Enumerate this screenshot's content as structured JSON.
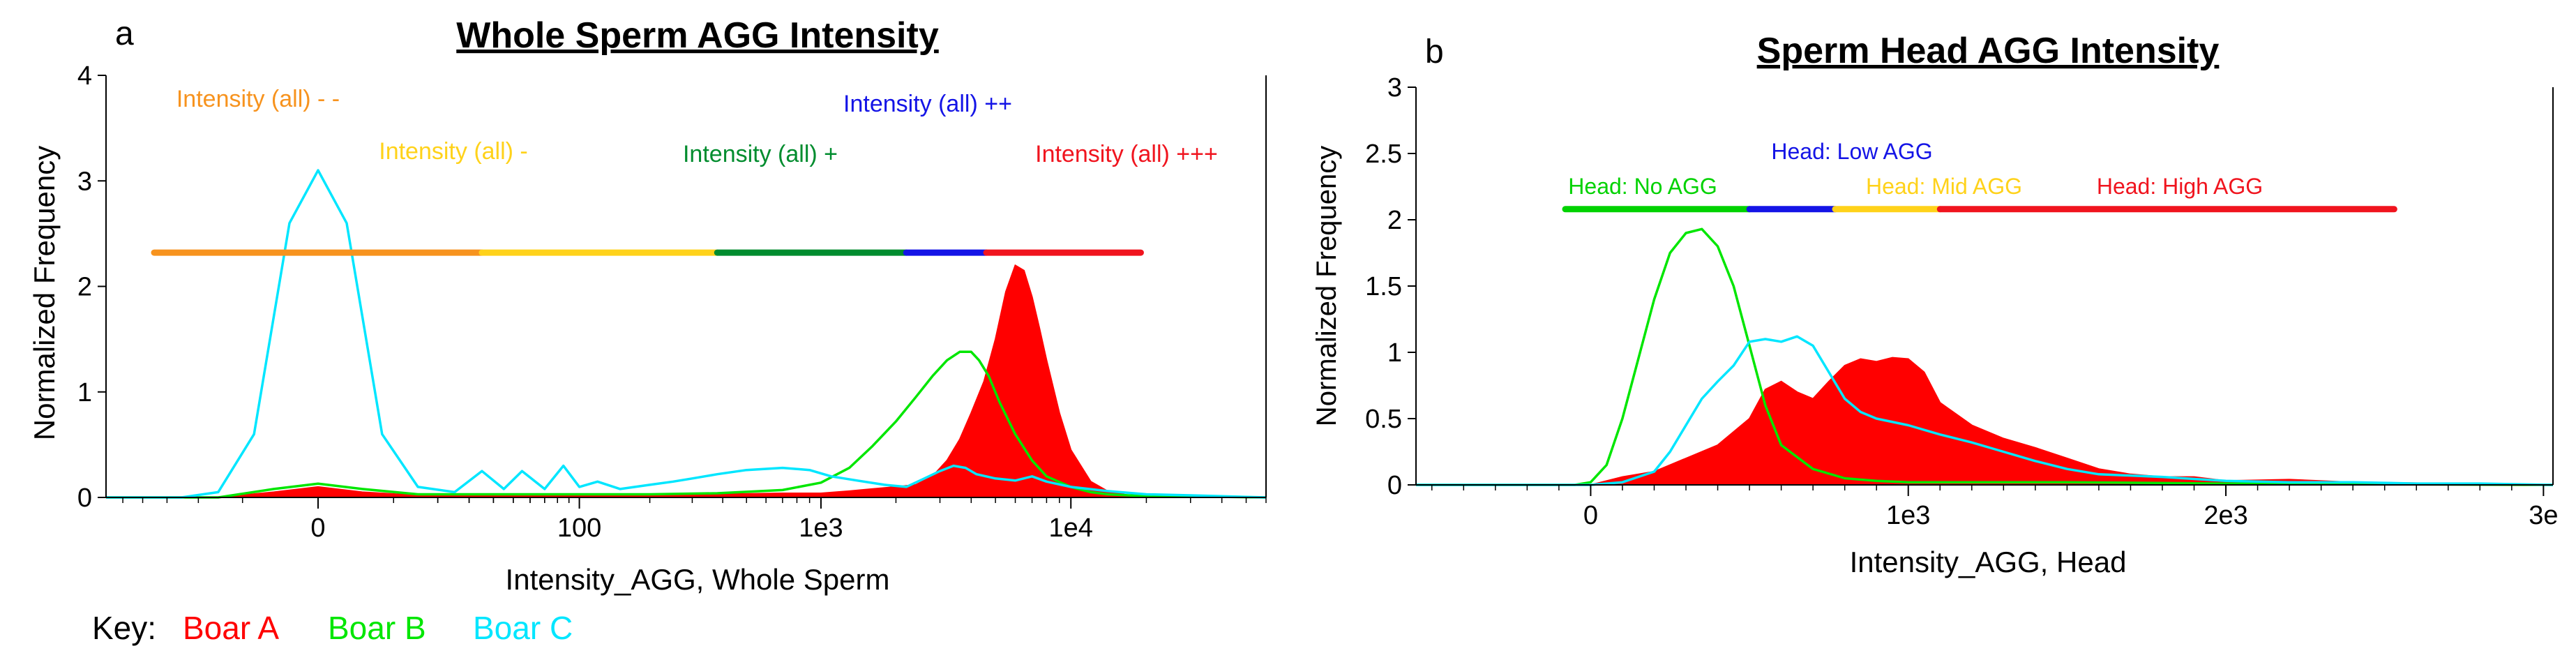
{
  "chart_data": [
    {
      "panel_label": "a",
      "type": "area",
      "title": "Whole Sperm AGG Intensity",
      "xlabel": "Intensity_AGG, Whole Sperm",
      "ylabel": "Normalized Frequency",
      "x_scale": "biexponential",
      "xlim": [
        -60,
        60000
      ],
      "ylim": [
        0,
        4
      ],
      "yticks": [
        0,
        1,
        2,
        3,
        4
      ],
      "xticks": [
        {
          "value": 0,
          "label": "0"
        },
        {
          "value": 100,
          "label": "100"
        },
        {
          "value": 1000,
          "label": "1e3"
        },
        {
          "value": 10000,
          "label": "1e4"
        }
      ],
      "gates": [
        {
          "label": "Intensity (all) - -",
          "color": "#F7931E",
          "range": [
            -35,
            35
          ]
        },
        {
          "label": "Intensity (all) -",
          "color": "#FFD21A",
          "range": [
            35,
            380
          ]
        },
        {
          "label": "Intensity (all) +",
          "color": "#008C2E",
          "range": [
            380,
            2200
          ]
        },
        {
          "label": "Intensity (all) ++",
          "color": "#1414E6",
          "range": [
            2200,
            4600
          ]
        },
        {
          "label": "Intensity (all) +++",
          "color": "#F0141E",
          "range": [
            4600,
            19000
          ]
        }
      ],
      "gate_level": 2.32,
      "series": [
        {
          "name": "Boar A",
          "color": "#FF0000",
          "style": "filled",
          "x": [
            -60,
            -15,
            -5,
            0,
            5,
            15,
            40,
            100,
            200,
            380,
            700,
            1000,
            1300,
            1600,
            2000,
            2400,
            2800,
            3200,
            3600,
            4000,
            4500,
            5000,
            5500,
            6000,
            6500,
            7000,
            7500,
            8000,
            9000,
            10000,
            12000,
            14000,
            17000,
            22000,
            30000,
            60000
          ],
          "y": [
            0,
            0,
            0.05,
            0.1,
            0.05,
            0.02,
            0.02,
            0.02,
            0.02,
            0.03,
            0.04,
            0.04,
            0.06,
            0.08,
            0.1,
            0.12,
            0.2,
            0.35,
            0.55,
            0.8,
            1.1,
            1.5,
            1.95,
            2.2,
            2.15,
            1.9,
            1.6,
            1.3,
            0.8,
            0.45,
            0.15,
            0.06,
            0.02,
            0.01,
            0.01,
            0
          ]
        },
        {
          "name": "Boar B",
          "color": "#00E600",
          "style": "line",
          "x": [
            -60,
            -15,
            -5,
            0,
            5,
            15,
            40,
            100,
            200,
            380,
            700,
            1000,
            1300,
            1600,
            2000,
            2400,
            2800,
            3200,
            3600,
            4000,
            4300,
            4700,
            5200,
            6000,
            7000,
            8000,
            10000,
            12000,
            14000,
            17000,
            22000,
            30000,
            60000
          ],
          "y": [
            0,
            0,
            0.08,
            0.13,
            0.08,
            0.03,
            0.03,
            0.03,
            0.03,
            0.04,
            0.07,
            0.14,
            0.28,
            0.48,
            0.72,
            0.95,
            1.15,
            1.3,
            1.38,
            1.38,
            1.3,
            1.15,
            0.9,
            0.6,
            0.35,
            0.2,
            0.1,
            0.05,
            0.03,
            0.02,
            0.01,
            0.01,
            0
          ]
        },
        {
          "name": "Boar C",
          "color": "#00E6FF",
          "style": "line",
          "x": [
            -60,
            -25,
            -15,
            -8,
            -3,
            0,
            3,
            8,
            15,
            25,
            35,
            45,
            55,
            70,
            85,
            100,
            120,
            150,
            200,
            250,
            300,
            380,
            500,
            700,
            900,
            1100,
            1400,
            1800,
            2200,
            2600,
            3000,
            3400,
            3800,
            4200,
            5000,
            6000,
            7000,
            8000,
            10000,
            14000,
            20000,
            30000,
            60000
          ],
          "y": [
            0,
            0,
            0.05,
            0.6,
            2.6,
            3.1,
            2.6,
            0.6,
            0.1,
            0.05,
            0.25,
            0.08,
            0.25,
            0.08,
            0.3,
            0.1,
            0.15,
            0.08,
            0.12,
            0.15,
            0.18,
            0.22,
            0.26,
            0.28,
            0.26,
            0.2,
            0.16,
            0.12,
            0.1,
            0.18,
            0.25,
            0.3,
            0.28,
            0.22,
            0.18,
            0.16,
            0.2,
            0.15,
            0.1,
            0.06,
            0.03,
            0.02,
            0
          ]
        }
      ]
    },
    {
      "panel_label": "b",
      "type": "area",
      "title": "Sperm Head AGG Intensity",
      "xlabel": "Intensity_AGG, Head",
      "ylabel": "Normalized Frequency",
      "x_scale": "linear",
      "xlim": [
        -550,
        3030
      ],
      "ylim": [
        0,
        3
      ],
      "yticks": [
        {
          "value": 0,
          "label": "0"
        },
        {
          "value": 0.5,
          "label": "0.5"
        },
        {
          "value": 1,
          "label": "1"
        },
        {
          "value": 1.5,
          "label": "1.5"
        },
        {
          "value": 2,
          "label": "2"
        },
        {
          "value": 2.5,
          "label": "2.5"
        },
        {
          "value": 3,
          "label": "3"
        }
      ],
      "xticks": [
        {
          "value": 0,
          "label": "0"
        },
        {
          "value": 1000,
          "label": "1e3"
        },
        {
          "value": 2000,
          "label": "2e3"
        },
        {
          "value": 3000,
          "label": "3e"
        }
      ],
      "gates": [
        {
          "label": "Head: No AGG",
          "color": "#00D200",
          "range": [
            -80,
            500
          ]
        },
        {
          "label": "Head: Low AGG",
          "color": "#1414E6",
          "range": [
            500,
            770
          ]
        },
        {
          "label": "Head: Mid AGG",
          "color": "#FFD21A",
          "range": [
            770,
            1100
          ]
        },
        {
          "label": "Head: High AGG",
          "color": "#F0141E",
          "range": [
            1100,
            2530
          ]
        }
      ],
      "gate_level": 2.08,
      "series": [
        {
          "name": "Boar A",
          "color": "#FF0000",
          "style": "filled",
          "x": [
            -550,
            0,
            100,
            200,
            300,
            400,
            500,
            550,
            600,
            650,
            700,
            750,
            800,
            850,
            900,
            950,
            1000,
            1050,
            1100,
            1200,
            1300,
            1400,
            1500,
            1600,
            1700,
            1800,
            1900,
            2000,
            2200,
            2400,
            3030
          ],
          "y": [
            0,
            0,
            0.06,
            0.1,
            0.2,
            0.3,
            0.5,
            0.72,
            0.78,
            0.7,
            0.65,
            0.78,
            0.9,
            0.95,
            0.93,
            0.96,
            0.95,
            0.85,
            0.62,
            0.45,
            0.35,
            0.28,
            0.2,
            0.12,
            0.08,
            0.06,
            0.06,
            0.03,
            0.04,
            0.02,
            0
          ]
        },
        {
          "name": "Boar B",
          "color": "#00E600",
          "style": "line",
          "x": [
            -550,
            -50,
            0,
            50,
            100,
            150,
            200,
            250,
            300,
            350,
            400,
            450,
            500,
            550,
            600,
            700,
            800,
            900,
            1000,
            1500,
            2000,
            3030
          ],
          "y": [
            0,
            0,
            0.02,
            0.15,
            0.5,
            0.95,
            1.4,
            1.75,
            1.9,
            1.93,
            1.8,
            1.5,
            1.05,
            0.6,
            0.3,
            0.12,
            0.05,
            0.03,
            0.02,
            0.02,
            0.01,
            0
          ]
        },
        {
          "name": "Boar C",
          "color": "#00E6FF",
          "style": "line",
          "x": [
            -550,
            0,
            100,
            200,
            250,
            300,
            350,
            400,
            450,
            500,
            550,
            600,
            650,
            700,
            750,
            800,
            850,
            900,
            1000,
            1100,
            1200,
            1300,
            1400,
            1500,
            1600,
            1800,
            2000,
            2200,
            2400,
            2600,
            2800,
            3030
          ],
          "y": [
            0,
            0,
            0.02,
            0.1,
            0.25,
            0.45,
            0.65,
            0.78,
            0.9,
            1.08,
            1.1,
            1.08,
            1.12,
            1.05,
            0.85,
            0.65,
            0.55,
            0.5,
            0.45,
            0.38,
            0.32,
            0.25,
            0.18,
            0.12,
            0.08,
            0.06,
            0.03,
            0.02,
            0.02,
            0.01,
            0.01,
            0
          ]
        }
      ]
    }
  ],
  "key": {
    "prefix": "Key:",
    "entries": [
      {
        "label": "Boar A",
        "color": "#FF0000"
      },
      {
        "label": "Boar B",
        "color": "#00E600"
      },
      {
        "label": "Boar C",
        "color": "#00E6FF"
      }
    ]
  }
}
